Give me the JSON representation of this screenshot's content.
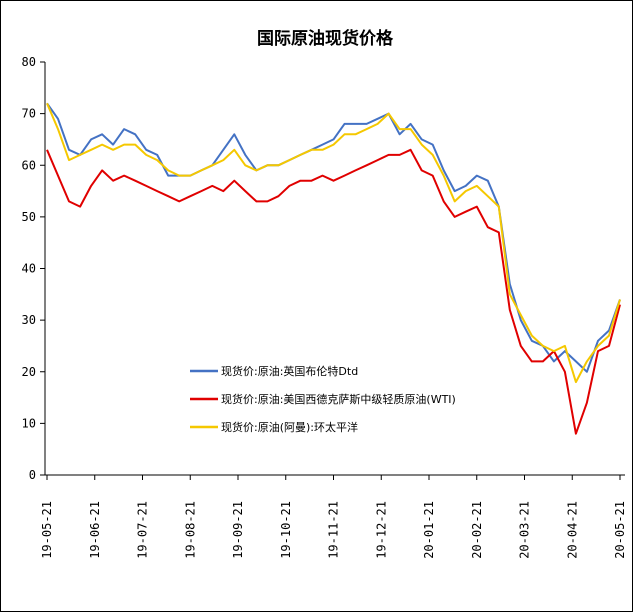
{
  "chart_data": {
    "type": "line",
    "title": "国际原油现货价格",
    "xlabel": "",
    "ylabel": "",
    "ylim": [
      0,
      80
    ],
    "yticks": [
      0,
      10,
      20,
      30,
      40,
      50,
      60,
      70,
      80
    ],
    "grid": false,
    "legend_position": "lower-left-center",
    "xtick_labels": [
      "19-05-21",
      "19-06-21",
      "19-07-21",
      "19-08-21",
      "19-09-21",
      "19-10-21",
      "19-11-21",
      "19-12-21",
      "20-01-21",
      "20-02-21",
      "20-03-21",
      "20-04-21",
      "20-05-21"
    ],
    "x": [
      "19-05-21",
      "19-05-28",
      "19-06-04",
      "19-06-11",
      "19-06-18",
      "19-06-25",
      "19-07-02",
      "19-07-09",
      "19-07-16",
      "19-07-23",
      "19-07-30",
      "19-08-06",
      "19-08-13",
      "19-08-20",
      "19-08-27",
      "19-09-03",
      "19-09-10",
      "19-09-16",
      "19-09-24",
      "19-10-01",
      "19-10-08",
      "19-10-15",
      "19-10-22",
      "19-10-29",
      "19-11-05",
      "19-11-12",
      "19-11-19",
      "19-11-26",
      "19-12-03",
      "19-12-10",
      "19-12-17",
      "19-12-24",
      "19-12-31",
      "20-01-07",
      "20-01-14",
      "20-01-21",
      "20-01-28",
      "20-02-04",
      "20-02-11",
      "20-02-18",
      "20-02-25",
      "20-03-03",
      "20-03-10",
      "20-03-17",
      "20-03-24",
      "20-03-31",
      "20-04-07",
      "20-04-14",
      "20-04-21",
      "20-04-28",
      "20-05-05",
      "20-05-12",
      "20-05-21"
    ],
    "series": [
      {
        "name": "现货价:原油:英国布伦特Dtd",
        "color": "#4472C4",
        "values": [
          72,
          69,
          63,
          62,
          65,
          66,
          64,
          67,
          66,
          63,
          62,
          58,
          58,
          58,
          59,
          60,
          63,
          66,
          62,
          59,
          60,
          60,
          61,
          62,
          63,
          64,
          65,
          68,
          68,
          68,
          69,
          70,
          66,
          68,
          65,
          64,
          59,
          55,
          56,
          58,
          57,
          52,
          37,
          30,
          26,
          25,
          22,
          24,
          22,
          20,
          26,
          28,
          34
        ]
      },
      {
        "name": "现货价:原油:美国西德克萨斯中级轻质原油(WTI)",
        "color": "#E00000",
        "values": [
          63,
          58,
          53,
          52,
          56,
          59,
          57,
          58,
          57,
          56,
          55,
          54,
          53,
          54,
          55,
          56,
          55,
          57,
          55,
          53,
          53,
          54,
          56,
          57,
          57,
          58,
          57,
          58,
          59,
          60,
          61,
          62,
          62,
          63,
          59,
          58,
          53,
          50,
          51,
          52,
          48,
          47,
          32,
          25,
          22,
          22,
          24,
          20,
          8,
          14,
          24,
          25,
          33
        ]
      },
      {
        "name": "现货价:原油(阿曼):环太平洋",
        "color": "#F5C800",
        "values": [
          72,
          67,
          61,
          62,
          63,
          64,
          63,
          64,
          64,
          62,
          61,
          59,
          58,
          58,
          59,
          60,
          61,
          63,
          60,
          59,
          60,
          60,
          61,
          62,
          63,
          63,
          64,
          66,
          66,
          67,
          68,
          70,
          67,
          67,
          64,
          62,
          58,
          53,
          55,
          56,
          54,
          52,
          35,
          31,
          27,
          25,
          24,
          25,
          18,
          22,
          25,
          27,
          34
        ]
      }
    ]
  }
}
